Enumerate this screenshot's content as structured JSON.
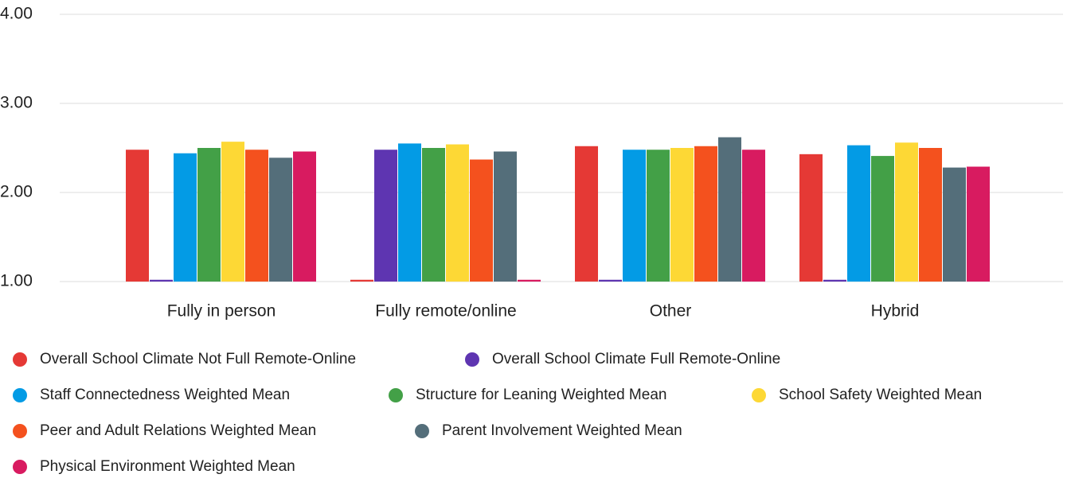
{
  "chart_data": {
    "type": "bar",
    "categories": [
      "Fully in person",
      "Fully remote/online",
      "Other",
      "Hybrid"
    ],
    "series": [
      {
        "name": "Overall School Climate Not Full Remote-Online",
        "color": "#e53935",
        "values": [
          2.48,
          1.02,
          2.52,
          2.43
        ]
      },
      {
        "name": "Overall School Climate Full Remote-Online",
        "color": "#5e35b1",
        "values": [
          1.02,
          2.48,
          1.02,
          1.02
        ]
      },
      {
        "name": "Staff Connectedness Weighted Mean",
        "color": "#039be5",
        "values": [
          2.44,
          2.55,
          2.48,
          2.53
        ]
      },
      {
        "name": "Structure for Leaning Weighted Mean",
        "color": "#43a047",
        "values": [
          2.5,
          2.5,
          2.48,
          2.41
        ]
      },
      {
        "name": "School Safety Weighted Mean",
        "color": "#fdd835",
        "values": [
          2.57,
          2.54,
          2.5,
          2.56
        ]
      },
      {
        "name": "Peer and Adult Relations Weighted Mean",
        "color": "#f4511e",
        "values": [
          2.48,
          2.37,
          2.52,
          2.5
        ]
      },
      {
        "name": "Parent Involvement Weighted Mean",
        "color": "#546e7a",
        "values": [
          2.39,
          2.46,
          2.62,
          2.28
        ]
      },
      {
        "name": "Physical Environment Weighted Mean",
        "color": "#d81b60",
        "values": [
          2.46,
          1.02,
          2.48,
          2.29
        ]
      }
    ],
    "ylim": [
      1,
      4
    ],
    "yticks": [
      {
        "value": 1,
        "label": "1.00"
      },
      {
        "value": 2,
        "label": "2.00"
      },
      {
        "value": 3,
        "label": "3.00"
      },
      {
        "value": 4,
        "label": "4.00"
      }
    ],
    "grid": true
  }
}
